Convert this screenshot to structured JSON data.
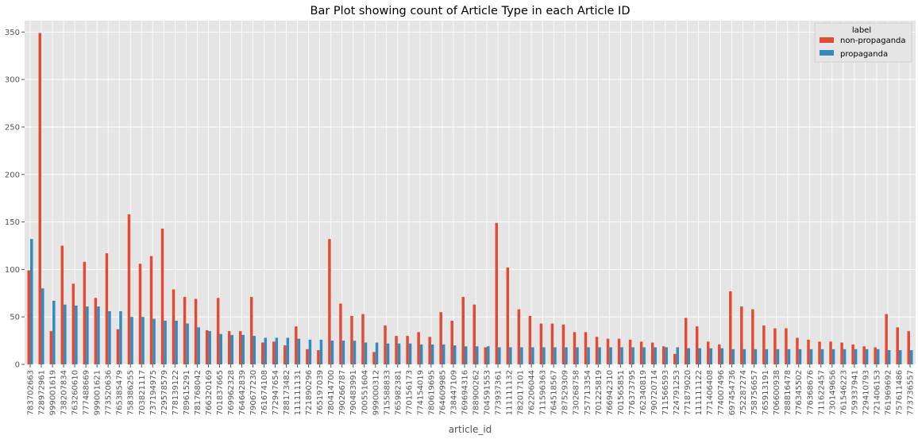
{
  "chart_data": {
    "type": "bar",
    "title": "Bar Plot showing count of Article Type in each Article ID",
    "xlabel": "article_id",
    "ylabel": "",
    "ylim": [
      0,
      362
    ],
    "yticks": [
      0,
      50,
      100,
      150,
      200,
      250,
      300,
      350
    ],
    "grid": true,
    "legend": {
      "title": "label",
      "placement": "top-right"
    },
    "categories": [
      "783702663",
      "728972961",
      "999001619",
      "738207834",
      "763260610",
      "777488669",
      "999001621",
      "773520636",
      "765385479",
      "758386255",
      "703821117",
      "737194975",
      "729578579",
      "778139122",
      "789615291",
      "781768042",
      "766320169",
      "701837665",
      "769962328",
      "764642839",
      "790677230",
      "761674108",
      "772947654",
      "788173482",
      "111111131",
      "721890296",
      "765197039",
      "780414700",
      "790266787",
      "790483991",
      "700551604",
      "999000312",
      "715588833",
      "765982381",
      "770156173",
      "774154019",
      "780619695",
      "764609985",
      "738447109",
      "769694316",
      "788900262",
      "704591553",
      "773937361",
      "111111132",
      "782017101",
      "762206044",
      "711596363",
      "764518567",
      "787529309",
      "730268758",
      "757713354",
      "701225819",
      "766942310",
      "701565851",
      "776373795",
      "762340819",
      "790720714",
      "711566593",
      "724791253",
      "771879020",
      "111111122",
      "771406408",
      "774007496",
      "697454736",
      "752287274",
      "758756657",
      "765913191",
      "706600938",
      "788816478",
      "776345502",
      "776368676",
      "711622457",
      "730149656",
      "761546223",
      "759337941",
      "729410793",
      "721406153",
      "761969692",
      "757611486",
      "773736557"
    ],
    "series": [
      {
        "name": "non-propaganda",
        "color": "#E24A33",
        "values": [
          99,
          349,
          35,
          125,
          85,
          108,
          70,
          117,
          37,
          158,
          106,
          114,
          143,
          79,
          71,
          69,
          36,
          70,
          35,
          35,
          71,
          23,
          24,
          20,
          40,
          16,
          15,
          132,
          64,
          51,
          53,
          13,
          41,
          30,
          30,
          34,
          29,
          55,
          46,
          71,
          63,
          18,
          149,
          102,
          58,
          51,
          43,
          43,
          42,
          34,
          34,
          29,
          27,
          27,
          26,
          24,
          23,
          19,
          11,
          49,
          40,
          24,
          21,
          77,
          61,
          58,
          41,
          38,
          38,
          28,
          26,
          24,
          24,
          23,
          21,
          19,
          18,
          53,
          39,
          35
        ]
      },
      {
        "name": "propaganda",
        "color": "#348ABD",
        "values": [
          132,
          80,
          67,
          63,
          62,
          61,
          61,
          56,
          56,
          50,
          50,
          48,
          46,
          46,
          43,
          39,
          35,
          32,
          31,
          31,
          30,
          28,
          28,
          28,
          27,
          26,
          26,
          25,
          25,
          25,
          23,
          23,
          22,
          22,
          22,
          21,
          21,
          21,
          20,
          19,
          19,
          19,
          18,
          18,
          18,
          18,
          18,
          18,
          18,
          18,
          18,
          18,
          18,
          18,
          18,
          18,
          18,
          18,
          18,
          17,
          17,
          17,
          17,
          16,
          16,
          16,
          16,
          16,
          16,
          16,
          16,
          16,
          16,
          16,
          16,
          16,
          16,
          15,
          15,
          15
        ]
      }
    ]
  }
}
